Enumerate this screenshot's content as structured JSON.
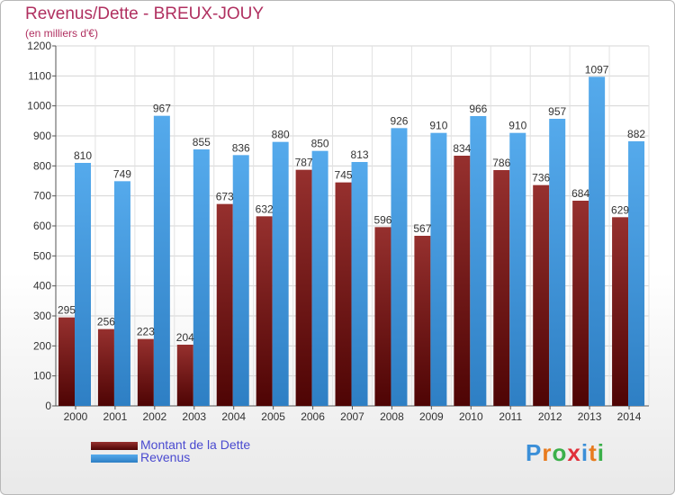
{
  "header": {
    "title": "Revenus/Dette - BREUX-JOUY",
    "subtitle": "(en milliers d'€)"
  },
  "chart_data": {
    "type": "bar",
    "categories": [
      "2000",
      "2001",
      "2002",
      "2003",
      "2004",
      "2005",
      "2006",
      "2007",
      "2008",
      "2009",
      "2010",
      "2011",
      "2012",
      "2013",
      "2014"
    ],
    "series": [
      {
        "name": "Montant de la Dette",
        "color": "#7a1a1a",
        "values": [
          295,
          256,
          223,
          204,
          673,
          632,
          787,
          745,
          596,
          567,
          834,
          786,
          736,
          684,
          629
        ]
      },
      {
        "name": "Revenus",
        "color": "#3a8fd6",
        "values": [
          810,
          749,
          967,
          855,
          836,
          880,
          850,
          813,
          926,
          910,
          966,
          910,
          957,
          1097,
          882
        ]
      }
    ],
    "yticks": [
      0,
      100,
      200,
      300,
      400,
      500,
      600,
      700,
      800,
      900,
      1000,
      1100,
      1200
    ],
    "ylim": [
      0,
      1200
    ],
    "grid": true,
    "legend_position": "bottom-left"
  },
  "legend": {
    "items": [
      {
        "label": "Montant de la Dette",
        "color": "#7a1a1a"
      },
      {
        "label": "Revenus",
        "color": "#3a8fd6"
      }
    ]
  },
  "logo": {
    "text": "Proxiti"
  }
}
